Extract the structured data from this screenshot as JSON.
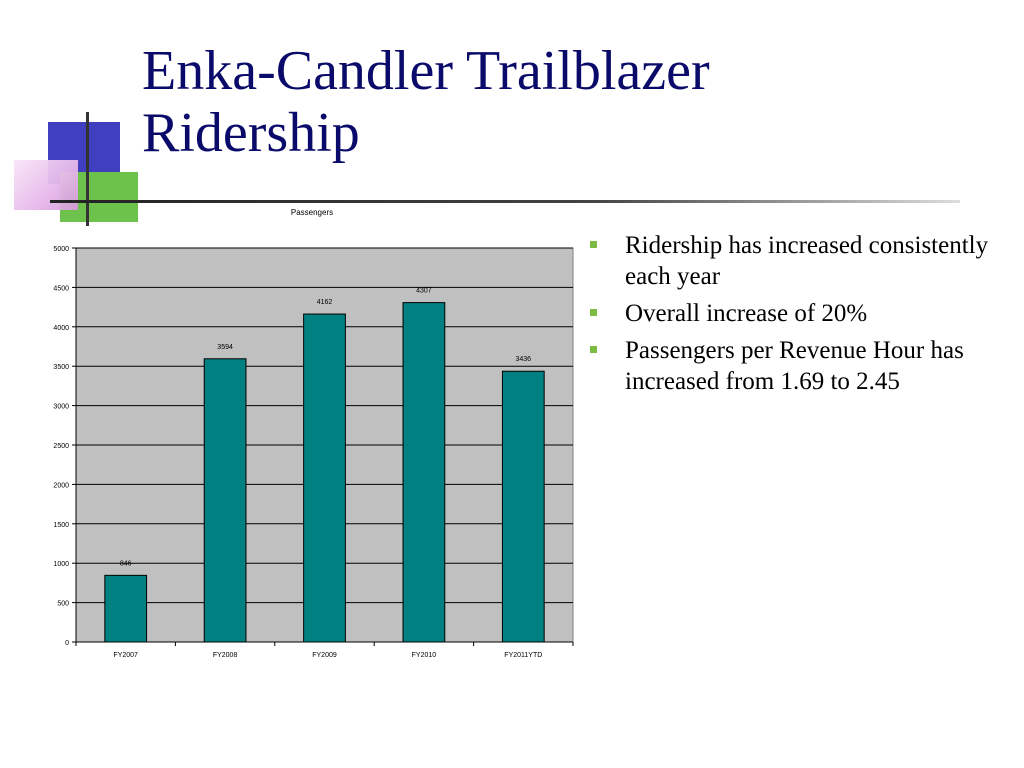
{
  "slide": {
    "title_lines": [
      "Enka-Candler Trailblazer",
      "Ridership"
    ],
    "bullets": [
      "Ridership has increased consistently each year",
      "Overall increase of 20%",
      "Passengers per Revenue Hour has increased from 1.69 to 2.45"
    ],
    "bullet_icon": "square-bullet-icon",
    "colors": {
      "title": "#0a0a6a",
      "bullet": "#7dbb42",
      "deco_blue": "#3f3fc0",
      "deco_green": "#6cc24a",
      "deco_pink": "#d49ad9"
    }
  },
  "chart_data": {
    "type": "bar",
    "title": "Passengers",
    "xlabel": "",
    "ylabel": "",
    "categories": [
      "FY2007",
      "FY2008",
      "FY2009",
      "FY2010",
      "FY2011YTD"
    ],
    "values": [
      846,
      3594,
      4162,
      4307,
      3436
    ],
    "data_labels": [
      "846",
      "3594",
      "4162",
      "4307",
      "3436"
    ],
    "ylim": [
      0,
      5000
    ],
    "yticks": [
      0,
      500,
      1000,
      1500,
      2000,
      2500,
      3000,
      3500,
      4000,
      4500,
      5000
    ],
    "grid": true,
    "legend": "none",
    "colors": {
      "bar": "#008080",
      "plot_background": "#c0c0c0",
      "gridline": "#000000"
    }
  }
}
